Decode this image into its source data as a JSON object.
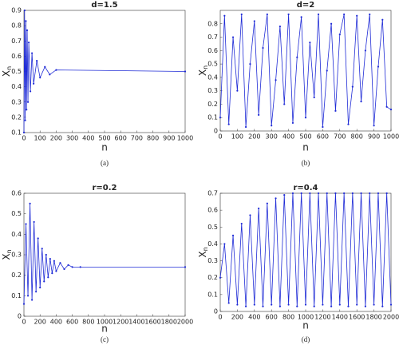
{
  "chart_data": [
    {
      "type": "line",
      "title": "d=1.5",
      "xlabel": "n",
      "ylabel": "X",
      "ylabel_subscript": "n",
      "caption": "(a)",
      "color": "#1f2bd6",
      "x": [
        0,
        4,
        8,
        12,
        16,
        20,
        25,
        30,
        40,
        50,
        60,
        80,
        100,
        130,
        160,
        200,
        1000
      ],
      "values": [
        0.1,
        0.9,
        0.18,
        0.83,
        0.25,
        0.77,
        0.3,
        0.69,
        0.37,
        0.62,
        0.42,
        0.57,
        0.46,
        0.53,
        0.48,
        0.51,
        0.5
      ],
      "xlim": [
        0,
        1000
      ],
      "xticks": [
        0,
        100,
        200,
        300,
        400,
        500,
        600,
        700,
        800,
        900,
        1000
      ],
      "ylim": [
        0.1,
        0.9
      ],
      "yticks": [
        0.1,
        0.2,
        0.3,
        0.4,
        0.5,
        0.6,
        0.7,
        0.8,
        0.9
      ]
    },
    {
      "type": "line",
      "title": "d=2",
      "xlabel": "n",
      "ylabel": "X",
      "ylabel_subscript": "n",
      "caption": "(b)",
      "color": "#1f2bd6",
      "x": [
        0,
        25,
        50,
        75,
        100,
        125,
        150,
        175,
        200,
        225,
        250,
        275,
        300,
        325,
        350,
        375,
        400,
        425,
        450,
        475,
        500,
        525,
        550,
        575,
        600,
        625,
        650,
        675,
        700,
        725,
        750,
        775,
        800,
        825,
        850,
        875,
        900,
        925,
        950,
        975,
        1000
      ],
      "values": [
        0.1,
        0.86,
        0.05,
        0.7,
        0.3,
        0.87,
        0.03,
        0.5,
        0.82,
        0.12,
        0.62,
        0.87,
        0.04,
        0.38,
        0.78,
        0.2,
        0.87,
        0.06,
        0.55,
        0.85,
        0.1,
        0.66,
        0.25,
        0.87,
        0.03,
        0.45,
        0.8,
        0.15,
        0.72,
        0.87,
        0.05,
        0.33,
        0.86,
        0.22,
        0.6,
        0.87,
        0.04,
        0.48,
        0.83,
        0.18,
        0.16
      ],
      "xlim": [
        0,
        1000
      ],
      "xticks": [
        0,
        100,
        200,
        300,
        400,
        500,
        600,
        700,
        800,
        900,
        1000
      ],
      "ylim": [
        0,
        0.9
      ],
      "yticks": [
        0,
        0.1,
        0.2,
        0.3,
        0.4,
        0.5,
        0.6,
        0.7,
        0.8
      ]
    },
    {
      "type": "line",
      "title": "r=0.2",
      "xlabel": "n",
      "ylabel": "X",
      "ylabel_subscript": "n",
      "caption": "(c)",
      "color": "#1f2bd6",
      "x": [
        0,
        25,
        50,
        75,
        100,
        125,
        150,
        175,
        200,
        225,
        250,
        275,
        300,
        325,
        350,
        375,
        400,
        450,
        500,
        550,
        600,
        700,
        2000
      ],
      "values": [
        0.06,
        0.45,
        0.1,
        0.55,
        0.08,
        0.46,
        0.12,
        0.38,
        0.14,
        0.33,
        0.17,
        0.3,
        0.19,
        0.28,
        0.21,
        0.27,
        0.22,
        0.26,
        0.23,
        0.25,
        0.24,
        0.24,
        0.24
      ],
      "xlim": [
        0,
        2000
      ],
      "xticks": [
        0,
        200,
        400,
        600,
        800,
        1000,
        1200,
        1400,
        1600,
        1800,
        2000
      ],
      "ylim": [
        0,
        0.6
      ],
      "yticks": [
        0,
        0.1,
        0.2,
        0.3,
        0.4,
        0.5,
        0.6
      ]
    },
    {
      "type": "line",
      "title": "r=0.4",
      "xlabel": "n",
      "ylabel": "X",
      "ylabel_subscript": "n",
      "caption": "(d)",
      "color": "#1f2bd6",
      "x": [
        0,
        50,
        100,
        150,
        200,
        250,
        300,
        350,
        400,
        450,
        500,
        550,
        600,
        650,
        700,
        750,
        800,
        850,
        900,
        950,
        1000,
        1050,
        1100,
        1150,
        1200,
        1250,
        1300,
        1350,
        1400,
        1450,
        1500,
        1550,
        1600,
        1650,
        1700,
        1750,
        1800,
        1850,
        1900,
        1950,
        2000
      ],
      "values": [
        0.2,
        0.4,
        0.05,
        0.45,
        0.04,
        0.52,
        0.03,
        0.57,
        0.04,
        0.61,
        0.03,
        0.64,
        0.04,
        0.67,
        0.03,
        0.69,
        0.04,
        0.7,
        0.03,
        0.7,
        0.04,
        0.7,
        0.03,
        0.7,
        0.04,
        0.7,
        0.03,
        0.7,
        0.04,
        0.7,
        0.03,
        0.7,
        0.04,
        0.7,
        0.03,
        0.7,
        0.04,
        0.7,
        0.03,
        0.7,
        0.04
      ],
      "xlim": [
        0,
        2000
      ],
      "xticks": [
        0,
        200,
        400,
        600,
        800,
        1000,
        1200,
        1400,
        1600,
        1800,
        2000
      ],
      "ylim": [
        0,
        0.7
      ],
      "yticks": [
        0,
        0.1,
        0.2,
        0.3,
        0.4,
        0.5,
        0.6,
        0.7
      ]
    }
  ]
}
